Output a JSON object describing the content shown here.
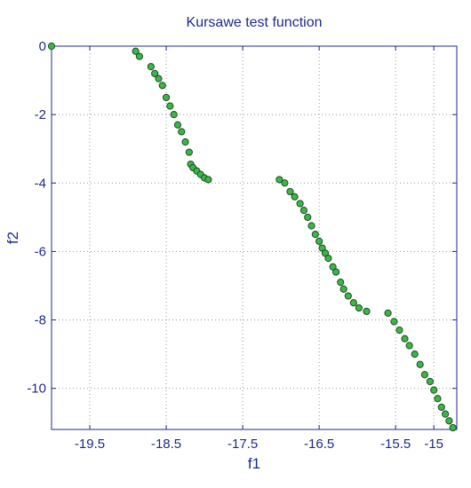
{
  "chart_data": {
    "type": "scatter",
    "title": "Kursawe test function",
    "xlabel": "f1",
    "ylabel": "f2",
    "xlim": [
      -20.0,
      -14.7
    ],
    "ylim": [
      -11.2,
      0
    ],
    "xticks": [
      -19.5,
      -18.5,
      -17.5,
      -16.5,
      -15.5,
      -15
    ],
    "xtick_labels": [
      "-19.5",
      "-18.5",
      "-17.5",
      "-16.5",
      "-15.5",
      "-15"
    ],
    "yticks": [
      0,
      -2,
      -4,
      -6,
      -8,
      -10
    ],
    "ytick_labels": [
      "0",
      "-2",
      "-4",
      "-6",
      "-8",
      "-10"
    ],
    "grid": true,
    "marker_color": "#3cb54a",
    "marker_edge_color": "#1d4e1f",
    "series": [
      {
        "x": [
          -20.0,
          -18.9,
          -18.85,
          -18.7,
          -18.65,
          -18.6,
          -18.55,
          -18.5,
          -18.45,
          -18.4,
          -18.35,
          -18.3,
          -18.25,
          -18.2,
          -18.18,
          -18.15,
          -18.1,
          -18.05,
          -18.0,
          -17.95,
          -17.02,
          -16.95,
          -16.88,
          -16.82,
          -16.75,
          -16.7,
          -16.65,
          -16.6,
          -16.55,
          -16.5,
          -16.46,
          -16.42,
          -16.38,
          -16.32,
          -16.28,
          -16.22,
          -16.18,
          -16.12,
          -16.05,
          -15.98,
          -15.88,
          -15.6,
          -15.52,
          -15.45,
          -15.38,
          -15.32,
          -15.25,
          -15.18,
          -15.12,
          -15.05,
          -15.0,
          -14.95,
          -14.9,
          -14.85,
          -14.8,
          -14.75
        ],
        "y": [
          0,
          -0.15,
          -0.3,
          -0.6,
          -0.8,
          -0.95,
          -1.15,
          -1.5,
          -1.75,
          -2.0,
          -2.3,
          -2.5,
          -2.8,
          -3.1,
          -3.45,
          -3.55,
          -3.65,
          -3.75,
          -3.85,
          -3.9,
          -3.9,
          -4.0,
          -4.25,
          -4.4,
          -4.6,
          -4.8,
          -5.0,
          -5.25,
          -5.5,
          -5.7,
          -5.9,
          -6.05,
          -6.2,
          -6.45,
          -6.6,
          -6.9,
          -7.1,
          -7.3,
          -7.5,
          -7.65,
          -7.75,
          -7.8,
          -8.05,
          -8.3,
          -8.55,
          -8.75,
          -9.0,
          -9.3,
          -9.6,
          -9.8,
          -10.05,
          -10.3,
          -10.55,
          -10.75,
          -10.95,
          -11.15
        ]
      }
    ]
  }
}
